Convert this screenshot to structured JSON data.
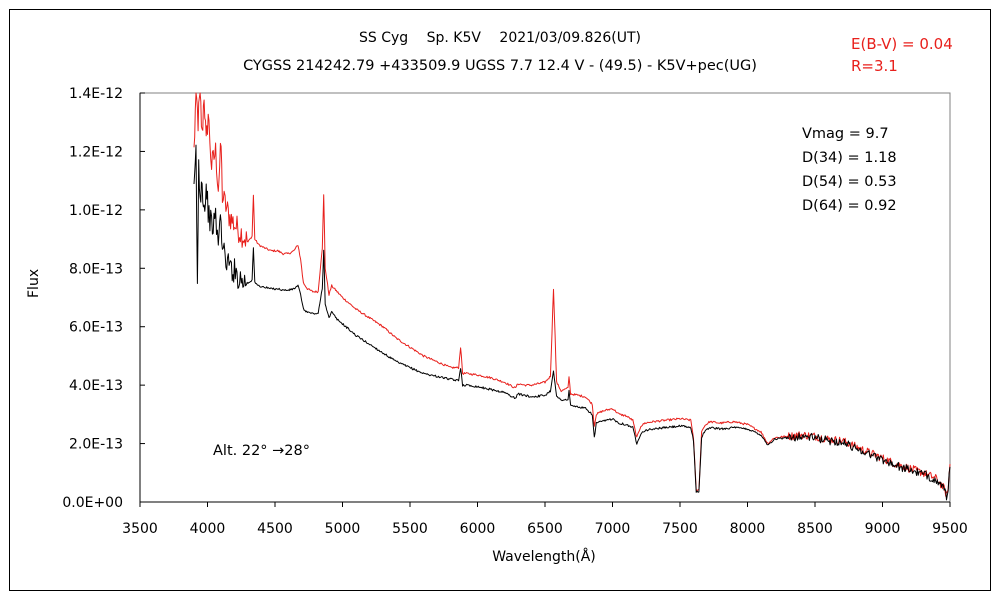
{
  "chart_data": {
    "type": "line",
    "title": "SS Cyg　 Sp. K5V　 2021/03/09.826(UT)",
    "subtitle": "CYGSS 214242.79 +433509.9 UGSS 7.7 12.4 V - (49.5) - K5V+pec(UG)",
    "xlabel": "Wavelength(Å)",
    "ylabel": "Flux",
    "xlim": [
      3500,
      9500
    ],
    "ylim": [
      0,
      1.4e-12
    ],
    "x_ticks": [
      3500,
      4000,
      4500,
      5000,
      5500,
      6000,
      6500,
      7000,
      7500,
      8000,
      8500,
      9000,
      9500
    ],
    "y_tick_values": [
      0,
      2e-13,
      4e-13,
      6e-13,
      8e-13,
      1e-12,
      1.2e-12,
      1.4e-12
    ],
    "y_tick_labels": [
      "0.0E+00",
      "2.0E-13",
      "4.0E-13",
      "6.0E-13",
      "8.0E-13",
      "1.0E-12",
      "1.2E-12",
      "1.4E-12"
    ],
    "grid": false,
    "legend": "none",
    "annotations": {
      "reddening": [
        "E(B-V) = 0.04",
        "R=3.1"
      ],
      "photometry": [
        "Vmag = 9.7",
        "D(34) = 1.18",
        "D(54) = 0.53",
        "D(64) = 0.92"
      ],
      "altitude": "Alt. 22° →28°"
    },
    "series": [
      {
        "name": "dereddened spectrum",
        "color": "#e8201c",
        "x": [
          3900,
          3915,
          3930,
          3945,
          3960,
          3975,
          3990,
          4005,
          4030,
          4060,
          4080,
          4101,
          4110,
          4130,
          4160,
          4200,
          4250,
          4300,
          4330,
          4340,
          4350,
          4380,
          4420,
          4470,
          4520,
          4560,
          4600,
          4640,
          4670,
          4690,
          4710,
          4740,
          4780,
          4820,
          4850,
          4861,
          4872,
          4900,
          4920,
          4960,
          5000,
          5050,
          5100,
          5200,
          5300,
          5400,
          5500,
          5600,
          5700,
          5800,
          5860,
          5875,
          5890,
          5920,
          6000,
          6100,
          6200,
          6280,
          6300,
          6350,
          6400,
          6500,
          6540,
          6563,
          6586,
          6620,
          6670,
          6678,
          6690,
          6750,
          6800,
          6850,
          6865,
          6880,
          6920,
          7000,
          7050,
          7100,
          7150,
          7180,
          7210,
          7240,
          7300,
          7400,
          7500,
          7580,
          7600,
          7620,
          7640,
          7660,
          7680,
          7720,
          7800,
          7900,
          8000,
          8100,
          8150,
          8200,
          8300,
          8400,
          8500,
          8600,
          8700,
          8800,
          8900,
          9000,
          9100,
          9200,
          9300,
          9400,
          9450,
          9480,
          9500
        ],
        "values": [
          1.2e-12,
          1.4e-12,
          1.3e-12,
          1.4e-12,
          1.25e-12,
          1.4e-12,
          1.22e-12,
          1.33e-12,
          1.15e-12,
          1.2e-12,
          1.08e-12,
          1.22e-12,
          1.05e-12,
          1.02e-12,
          9.8e-13,
          9.5e-13,
          9.2e-13,
          8.9e-13,
          9.1e-13,
          1.05e-12,
          9e-13,
          8.8e-13,
          8.7e-13,
          8.6e-13,
          8.6e-13,
          8.5e-13,
          8.5e-13,
          8.6e-13,
          8.8e-13,
          8.3e-13,
          7.5e-13,
          7.3e-13,
          7.2e-13,
          7.2e-13,
          8.7e-13,
          1.05e-12,
          8e-13,
          7.1e-13,
          7.4e-13,
          7.2e-13,
          7e-13,
          6.8e-13,
          6.6e-13,
          6.3e-13,
          6e-13,
          5.6e-13,
          5.3e-13,
          5e-13,
          4.8e-13,
          4.6e-13,
          4.6e-13,
          5.3e-13,
          4.4e-13,
          4.4e-13,
          4.35e-13,
          4.25e-13,
          4.1e-13,
          3.9e-13,
          4.05e-13,
          4e-13,
          4e-13,
          4.1e-13,
          4.3e-13,
          7.3e-13,
          4.1e-13,
          3.8e-13,
          3.9e-13,
          4.3e-13,
          3.7e-13,
          3.65e-13,
          3.6e-13,
          3.35e-13,
          2.6e-13,
          3e-13,
          3.1e-13,
          3.2e-13,
          3e-13,
          2.95e-13,
          2.8e-13,
          2.2e-13,
          2.6e-13,
          2.7e-13,
          2.75e-13,
          2.8e-13,
          2.85e-13,
          2.8e-13,
          2.2e-13,
          4e-14,
          4e-14,
          2.4e-13,
          2.6e-13,
          2.75e-13,
          2.7e-13,
          2.75e-13,
          2.65e-13,
          2.4e-13,
          2e-13,
          2.2e-13,
          2.25e-13,
          2.3e-13,
          2.25e-13,
          2.15e-13,
          2.1e-13,
          1.9e-13,
          1.7e-13,
          1.5e-13,
          1.3e-13,
          1.15e-13,
          1e-13,
          8e-14,
          5e-14,
          2e-14,
          1.3e-13
        ]
      },
      {
        "name": "observed spectrum",
        "color": "#000000",
        "x": [
          3900,
          3915,
          3925,
          3935,
          3945,
          3960,
          3975,
          3990,
          4005,
          4030,
          4060,
          4080,
          4101,
          4110,
          4130,
          4160,
          4200,
          4250,
          4300,
          4330,
          4340,
          4350,
          4380,
          4420,
          4470,
          4520,
          4560,
          4600,
          4640,
          4670,
          4690,
          4710,
          4740,
          4780,
          4820,
          4850,
          4861,
          4872,
          4900,
          4920,
          4960,
          5000,
          5050,
          5100,
          5200,
          5300,
          5400,
          5500,
          5600,
          5700,
          5800,
          5860,
          5875,
          5890,
          5920,
          6000,
          6100,
          6200,
          6280,
          6300,
          6350,
          6400,
          6500,
          6540,
          6563,
          6586,
          6620,
          6670,
          6678,
          6690,
          6750,
          6800,
          6850,
          6865,
          6880,
          6920,
          7000,
          7050,
          7100,
          7150,
          7180,
          7210,
          7240,
          7300,
          7400,
          7500,
          7580,
          7600,
          7620,
          7640,
          7660,
          7680,
          7720,
          7800,
          7900,
          8000,
          8100,
          8150,
          8200,
          8300,
          8400,
          8500,
          8600,
          8700,
          8800,
          8900,
          9000,
          9100,
          9200,
          9300,
          9400,
          9450,
          9480,
          9500
        ],
        "values": [
          1.05e-12,
          1.2e-12,
          7.4e-13,
          1.15e-12,
          1.05e-12,
          1.1e-12,
          1e-12,
          1.08e-12,
          1e-12,
          9.4e-13,
          9.7e-13,
          8.9e-13,
          9.9e-13,
          8.6e-13,
          8.4e-13,
          8.1e-13,
          7.9e-13,
          7.6e-13,
          7.5e-13,
          7.6e-13,
          8.7e-13,
          7.5e-13,
          7.4e-13,
          7.35e-13,
          7.3e-13,
          7.3e-13,
          7.25e-13,
          7.25e-13,
          7.3e-13,
          7.4e-13,
          7.1e-13,
          6.6e-13,
          6.5e-13,
          6.45e-13,
          6.45e-13,
          7.3e-13,
          8.6e-13,
          6.8e-13,
          6.3e-13,
          6.5e-13,
          6.25e-13,
          6.1e-13,
          5.9e-13,
          5.7e-13,
          5.4e-13,
          5.1e-13,
          4.8e-13,
          4.6e-13,
          4.4e-13,
          4.3e-13,
          4.2e-13,
          4.15e-13,
          4.6e-13,
          4e-13,
          4e-13,
          3.95e-13,
          3.85e-13,
          3.75e-13,
          3.55e-13,
          3.7e-13,
          3.65e-13,
          3.6e-13,
          3.65e-13,
          3.8e-13,
          4.5e-13,
          3.6e-13,
          3.5e-13,
          3.5e-13,
          3.8e-13,
          3.3e-13,
          3.25e-13,
          3.2e-13,
          3e-13,
          2.2e-13,
          2.7e-13,
          2.75e-13,
          2.85e-13,
          2.7e-13,
          2.65e-13,
          2.55e-13,
          2e-13,
          2.35e-13,
          2.45e-13,
          2.5e-13,
          2.55e-13,
          2.6e-13,
          2.55e-13,
          2.1e-13,
          3.5e-14,
          3.5e-14,
          2.2e-13,
          2.4e-13,
          2.55e-13,
          2.5e-13,
          2.55e-13,
          2.5e-13,
          2.3e-13,
          1.95e-13,
          2.15e-13,
          2.2e-13,
          2.25e-13,
          2.2e-13,
          2.1e-13,
          2.05e-13,
          1.85e-13,
          1.65e-13,
          1.45e-13,
          1.25e-13,
          1.1e-13,
          9.5e-14,
          7.5e-14,
          4.5e-14,
          1.5e-14,
          1.2e-13
        ]
      }
    ]
  }
}
